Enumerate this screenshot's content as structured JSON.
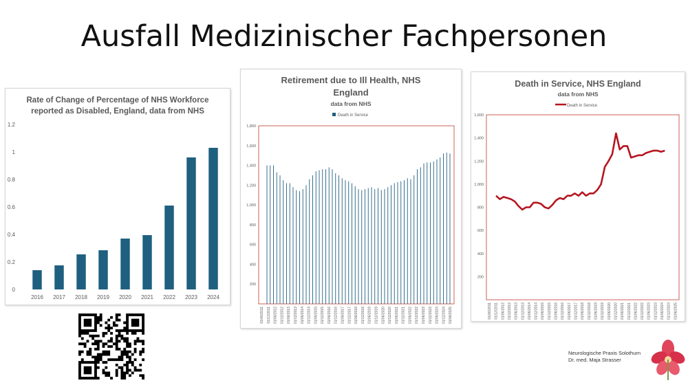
{
  "slide": {
    "title": "Ausfall Medizinischer Fachpersonen"
  },
  "logo": {
    "line1": "Neurologische Praxis Solothurn",
    "line2": "Dr. med. Maja Strasser"
  },
  "chart_data": [
    {
      "type": "bar",
      "title": "Rate of Change of Percentage of NHS Workforce reported as Disabled, England, data from NHS",
      "title_lines": [
        "Rate of Change of Percentage of NHS Workforce",
        "reported as Disabled, England, data from NHS"
      ],
      "categories": [
        "2016",
        "2017",
        "2018",
        "2019",
        "2020",
        "2021",
        "2022",
        "2023",
        "2024"
      ],
      "values": [
        0.14,
        0.175,
        0.255,
        0.285,
        0.37,
        0.395,
        0.61,
        0.96,
        1.03
      ],
      "ylim": [
        0,
        1.2
      ],
      "yticks": [
        "0",
        "0.2",
        "0.4",
        "0.6",
        "0.8",
        "1",
        "1.2"
      ],
      "grid": false,
      "color": "#1f5f7f"
    },
    {
      "type": "bar",
      "title": "Retirement due to Ill Health, NHS England",
      "title_lines": [
        "Retirement due to Ill Health, NHS",
        "England"
      ],
      "subtitle": "data from NHS",
      "legend": "Death in Service",
      "legend_position": "top",
      "ylim": [
        0,
        1800
      ],
      "yticks": [
        "200",
        "400",
        "600",
        "800",
        "1,000",
        "1,200",
        "1,400",
        "1,600",
        "1,800"
      ],
      "xticks": [
        "01/06/2011",
        "01/12/2011",
        "01/06/2012",
        "01/12/2012",
        "01/06/2013",
        "01/12/2013",
        "01/06/2014",
        "01/12/2014",
        "01/06/2015",
        "01/12/2015",
        "01/06/2016",
        "01/12/2016",
        "01/06/2017",
        "01/12/2017",
        "01/06/2018",
        "01/12/2018",
        "01/06/2019",
        "01/12/2019",
        "01/06/2020",
        "01/12/2020",
        "01/06/2021",
        "01/12/2021",
        "01/06/2022",
        "01/12/2022",
        "01/06/2023",
        "01/12/2023",
        "01/06/2024",
        "01/12/2024",
        "01/06/2025"
      ],
      "values": [
        1400,
        1400,
        1400,
        1330,
        1300,
        1250,
        1220,
        1220,
        1180,
        1150,
        1140,
        1160,
        1200,
        1260,
        1300,
        1340,
        1350,
        1360,
        1360,
        1380,
        1360,
        1320,
        1300,
        1270,
        1250,
        1240,
        1220,
        1190,
        1160,
        1150,
        1160,
        1170,
        1180,
        1160,
        1170,
        1150,
        1160,
        1180,
        1200,
        1220,
        1230,
        1240,
        1250,
        1270,
        1260,
        1300,
        1360,
        1380,
        1420,
        1430,
        1430,
        1440,
        1460,
        1480,
        1520,
        1530,
        1520
      ],
      "color": "#1f5f7f"
    },
    {
      "type": "line",
      "title": "Death in Service, NHS England",
      "subtitle": "data from NHS",
      "legend": "Death in Service",
      "legend_position": "top",
      "ylim": [
        0,
        1600
      ],
      "yticks": [
        "200",
        "400",
        "600",
        "800",
        "1,000",
        "1,200",
        "1,400",
        "1,600"
      ],
      "xticks": [
        "01/06/2011",
        "01/12/2011",
        "01/06/2012",
        "01/12/2012",
        "01/06/2013",
        "01/12/2013",
        "01/06/2014",
        "01/12/2014",
        "01/06/2015",
        "01/12/2015",
        "01/06/2016",
        "01/12/2016",
        "01/06/2017",
        "01/12/2017",
        "01/06/2018",
        "01/12/2018",
        "01/06/2019",
        "01/12/2019",
        "01/06/2020",
        "01/12/2020",
        "01/06/2021",
        "01/12/2021",
        "01/06/2022",
        "01/12/2022",
        "01/06/2023",
        "01/12/2023",
        "01/06/2024",
        "01/12/2024",
        "01/06/2025"
      ],
      "values": [
        900,
        870,
        890,
        880,
        870,
        850,
        810,
        780,
        800,
        800,
        840,
        840,
        830,
        800,
        790,
        820,
        860,
        880,
        870,
        900,
        900,
        920,
        900,
        930,
        900,
        920,
        920,
        950,
        1000,
        1150,
        1200,
        1260,
        1440,
        1300,
        1330,
        1330,
        1230,
        1240,
        1250,
        1250,
        1270,
        1280,
        1290,
        1290,
        1280,
        1290
      ],
      "color": "#b5151f"
    }
  ]
}
